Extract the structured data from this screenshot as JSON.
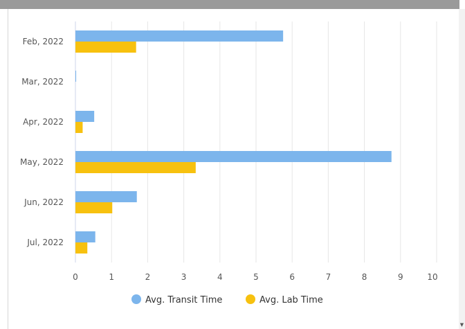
{
  "chart_data": {
    "type": "bar",
    "orientation": "horizontal",
    "categories": [
      "Feb, 2022",
      "Mar, 2022",
      "Apr, 2022",
      "May, 2022",
      "Jun, 2022",
      "Jul, 2022"
    ],
    "series": [
      {
        "name": "Avg. Transit Time",
        "color": "#7cb5ec",
        "values": [
          5.75,
          0.02,
          0.52,
          8.75,
          1.7,
          0.55
        ]
      },
      {
        "name": "Avg. Lab Time",
        "color": "#f7c10f",
        "values": [
          1.68,
          0,
          0.2,
          3.33,
          1.02,
          0.33
        ]
      }
    ],
    "xlim": [
      0,
      10
    ],
    "xticks": [
      0,
      1,
      2,
      3,
      4,
      5,
      6,
      7,
      8,
      9,
      10
    ],
    "grid": true,
    "legend_position": "bottom"
  },
  "colors": {
    "gridline": "#e6e6e6",
    "axis_line": "#ccd6eb"
  }
}
